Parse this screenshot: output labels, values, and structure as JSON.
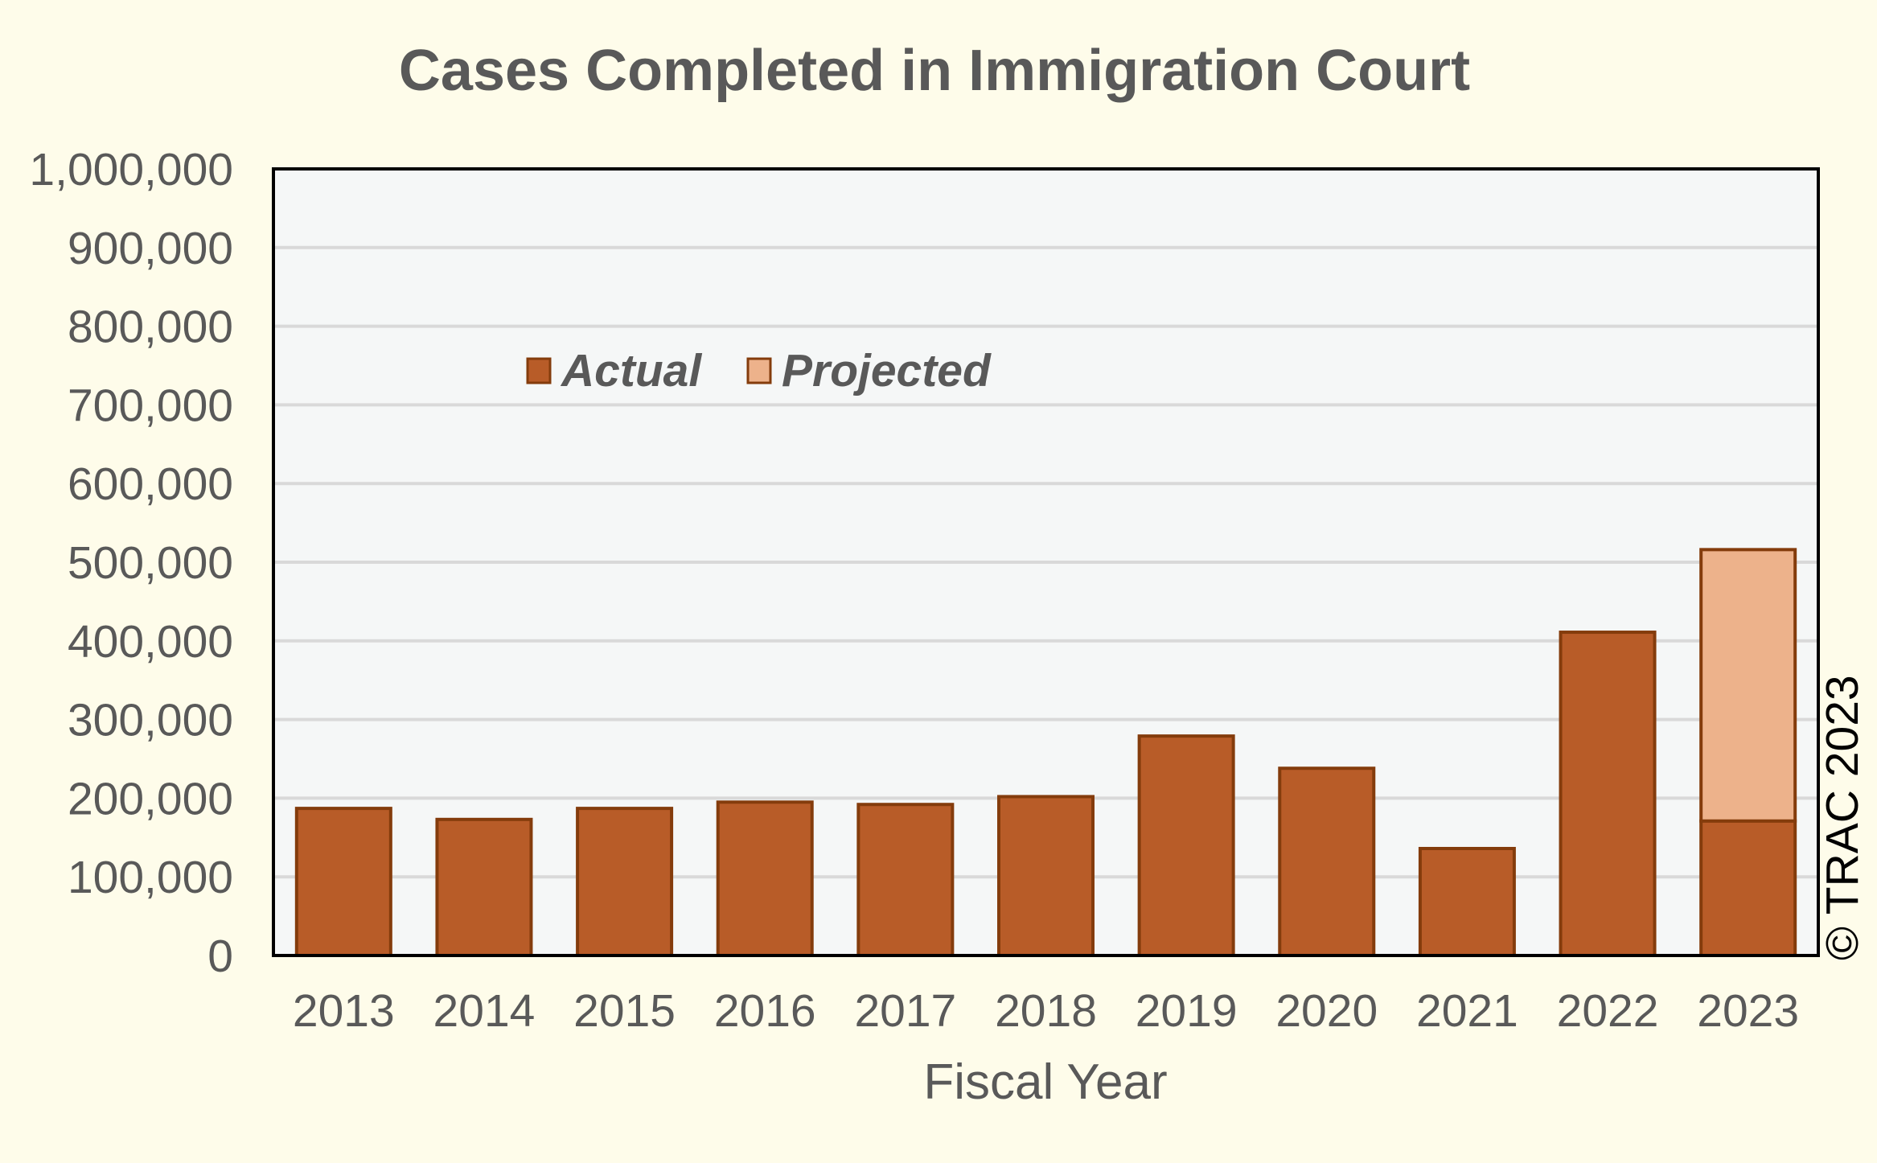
{
  "chart_data": {
    "type": "bar",
    "stacked": true,
    "title": "Cases Completed in Immigration Court",
    "xlabel": "Fiscal Year",
    "ylabel": "",
    "categories": [
      "2013",
      "2014",
      "2015",
      "2016",
      "2017",
      "2018",
      "2019",
      "2020",
      "2021",
      "2022",
      "2023"
    ],
    "series": [
      {
        "name": "Actual",
        "color": "#b85c28",
        "values": [
          187000,
          173000,
          187000,
          195000,
          192000,
          202000,
          279000,
          238000,
          136000,
          411000,
          171000
        ]
      },
      {
        "name": "Projected",
        "color": "#edb28b",
        "values": [
          0,
          0,
          0,
          0,
          0,
          0,
          0,
          0,
          0,
          0,
          345000
        ]
      }
    ],
    "ylim": [
      0,
      1000000
    ],
    "yticks": [
      "0",
      "100,000",
      "200,000",
      "300,000",
      "400,000",
      "500,000",
      "600,000",
      "700,000",
      "800,000",
      "900,000",
      "1,000,000"
    ],
    "grid": true,
    "legend_position": "top-left",
    "annotation": "© TRAC 2023",
    "colors": {
      "page_background": "#fefcea",
      "plot_background": "#f5f7f7",
      "gridline": "#d9d9d9",
      "bar_outline": "#843c0c",
      "text": "#595959"
    }
  }
}
